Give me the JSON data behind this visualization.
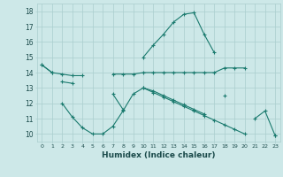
{
  "xlabel": "Humidex (Indice chaleur)",
  "x": [
    0,
    1,
    2,
    3,
    4,
    5,
    6,
    7,
    8,
    9,
    10,
    11,
    12,
    13,
    14,
    15,
    16,
    17,
    18,
    19,
    20,
    21,
    22,
    23
  ],
  "line1": [
    14.5,
    14.0,
    null,
    null,
    null,
    null,
    null,
    null,
    null,
    null,
    15.0,
    15.8,
    16.5,
    17.3,
    17.8,
    17.9,
    16.5,
    15.3,
    null,
    null,
    null,
    null,
    null,
    null
  ],
  "line2": [
    14.5,
    14.0,
    13.9,
    13.8,
    13.8,
    null,
    null,
    13.9,
    13.9,
    13.9,
    14.0,
    14.0,
    14.0,
    14.0,
    14.0,
    14.0,
    14.0,
    14.0,
    14.3,
    14.3,
    14.3,
    null,
    null,
    null
  ],
  "line3": [
    null,
    null,
    13.4,
    13.3,
    null,
    null,
    null,
    12.6,
    11.6,
    null,
    null,
    null,
    null,
    null,
    null,
    null,
    null,
    null,
    12.5,
    null,
    null,
    null,
    null,
    null
  ],
  "line4": [
    null,
    null,
    12.0,
    11.1,
    10.4,
    10.0,
    10.0,
    10.5,
    11.5,
    12.6,
    13.0,
    12.8,
    12.5,
    12.2,
    11.9,
    11.6,
    11.3,
    null,
    null,
    null,
    null,
    11.0,
    11.5,
    9.9
  ],
  "line5": [
    null,
    null,
    null,
    null,
    null,
    null,
    null,
    null,
    null,
    null,
    13.0,
    12.7,
    12.4,
    12.1,
    11.8,
    11.5,
    11.2,
    10.9,
    10.6,
    10.3,
    10.0,
    null,
    null,
    9.9
  ],
  "bg_color": "#cde8e8",
  "grid_color": "#aacece",
  "line_color": "#1a7a6e",
  "ylim_min": 9.5,
  "ylim_max": 18.5,
  "xlim_min": -0.5,
  "xlim_max": 23.5,
  "yticks": [
    10,
    11,
    12,
    13,
    14,
    15,
    16,
    17,
    18
  ],
  "xticks": [
    0,
    1,
    2,
    3,
    4,
    5,
    6,
    7,
    8,
    9,
    10,
    11,
    12,
    13,
    14,
    15,
    16,
    17,
    18,
    19,
    20,
    21,
    22,
    23
  ]
}
